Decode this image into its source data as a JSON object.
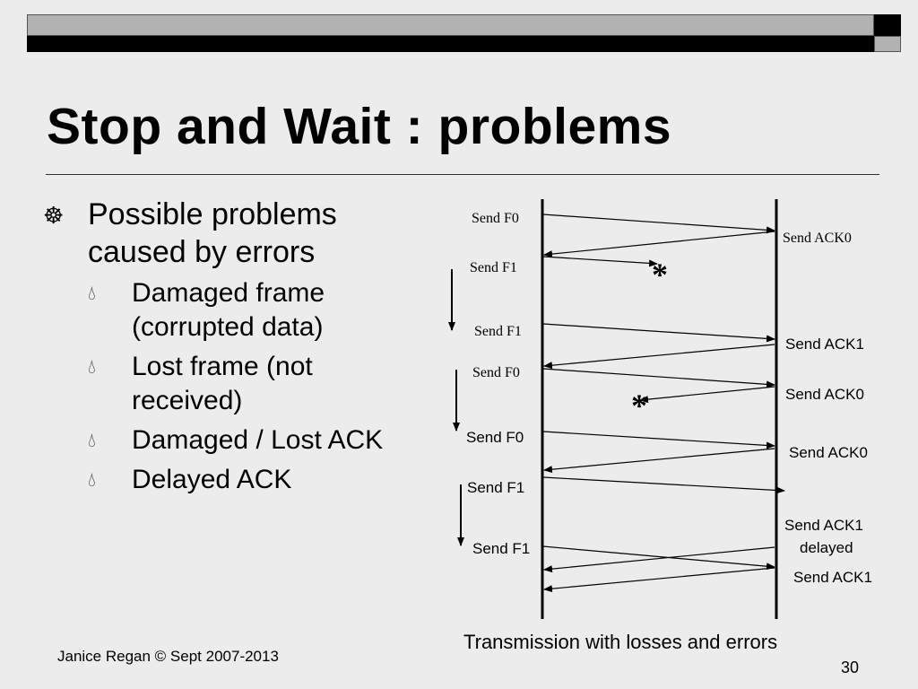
{
  "title": "Stop and Wait : problems",
  "bullets": {
    "main": "Possible problems caused by errors",
    "items": [
      "Damaged frame (corrupted data)",
      "Lost frame (not received)",
      "Damaged / Lost ACK",
      "Delayed ACK"
    ]
  },
  "diagram": {
    "sender_labels": [
      "Send F0",
      "Send F1",
      "Send F1",
      "Send F0",
      "Send F0",
      "Send F1",
      "Send F1"
    ],
    "receiver_labels": [
      "Send ACK0",
      "Send ACK1",
      "Send ACK0",
      "Send ACK0",
      "Send ACK1",
      "delayed",
      "Send ACK1"
    ],
    "loss_marks": [
      "*",
      "*"
    ],
    "caption": "Transmission with losses and errors"
  },
  "footer": {
    "author": "Janice Regan © Sept 2007-2013",
    "page_number": "30"
  }
}
